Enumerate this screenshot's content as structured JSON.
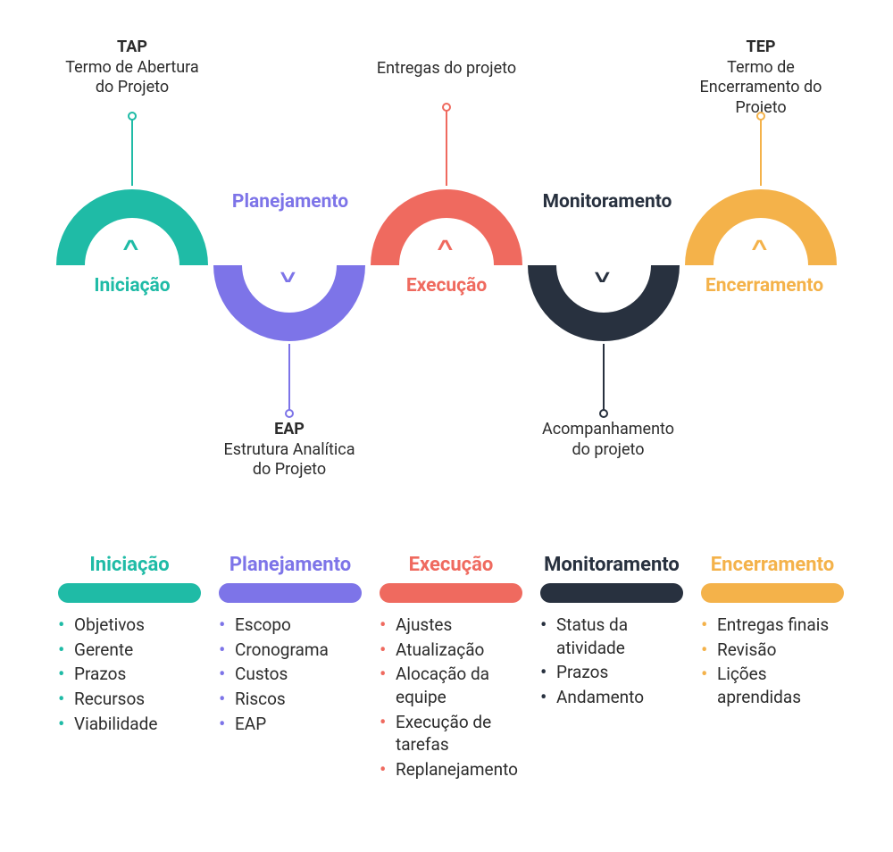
{
  "diagram": {
    "type": "infographic",
    "background_color": "#ffffff",
    "text_color": "#2c2c2c",
    "phases": [
      {
        "key": "iniciacao",
        "label": "Iniciação",
        "color": "#1fbba6",
        "arc_direction": "up",
        "chevron": "˄",
        "callout_position": "top",
        "callout_title": "TAP",
        "callout_sub": "Termo de Abertura do Projeto"
      },
      {
        "key": "planejamento",
        "label": "Planejamento",
        "color": "#7d74e8",
        "arc_direction": "down",
        "chevron": "˅",
        "callout_position": "bottom",
        "callout_title": "EAP",
        "callout_sub": "Estrutura Analítica do Projeto"
      },
      {
        "key": "execucao",
        "label": "Execução",
        "color": "#ef6a5f",
        "arc_direction": "up",
        "chevron": "˄",
        "callout_position": "top",
        "callout_title": "",
        "callout_sub": "Entregas do projeto"
      },
      {
        "key": "monitoramento",
        "label": "Monitoramento",
        "color": "#28313f",
        "arc_direction": "down",
        "chevron": "˅",
        "callout_position": "bottom",
        "callout_title": "",
        "callout_sub": "Acompanhamento do projeto"
      },
      {
        "key": "encerramento",
        "label": "Encerramento",
        "color": "#f4b24a",
        "arc_direction": "up",
        "chevron": "˄",
        "callout_position": "top",
        "callout_title": "TEP",
        "callout_sub": "Termo de Encerramento do Projeto"
      }
    ],
    "arc_style": {
      "outer_radius": 88,
      "inner_radius": 56,
      "stroke_gap_deg": 4,
      "spacing": 176
    },
    "callout_style": {
      "title_fontsize": 18,
      "title_weight": 700,
      "sub_fontsize": 18,
      "sub_weight": 400,
      "stem_length": 64,
      "dot_radius": 5
    },
    "label_style": {
      "fontsize": 21,
      "weight": 700
    }
  },
  "columns": [
    {
      "title": "Iniciação",
      "color": "#1fbba6",
      "items": [
        "Objetivos",
        "Gerente",
        "Prazos",
        "Recursos",
        "Viabilidade"
      ]
    },
    {
      "title": "Planejamento",
      "color": "#7d74e8",
      "items": [
        "Escopo",
        "Cronograma",
        "Custos",
        "Riscos",
        "EAP"
      ]
    },
    {
      "title": "Execução",
      "color": "#ef6a5f",
      "items": [
        "Ajustes",
        "Atualização",
        "Alocação da equipe",
        "Execução de tarefas",
        "Replanejamento"
      ]
    },
    {
      "title": "Monitoramento",
      "color": "#28313f",
      "items": [
        "Status da atividade",
        "Prazos",
        "Andamento"
      ]
    },
    {
      "title": "Encerramento",
      "color": "#f4b24a",
      "items": [
        "Entregas finais",
        "Revisão",
        "Lições aprendidas"
      ]
    }
  ],
  "column_style": {
    "title_fontsize": 22,
    "pill_height": 22,
    "item_fontsize": 19,
    "bullet_char": "•"
  }
}
